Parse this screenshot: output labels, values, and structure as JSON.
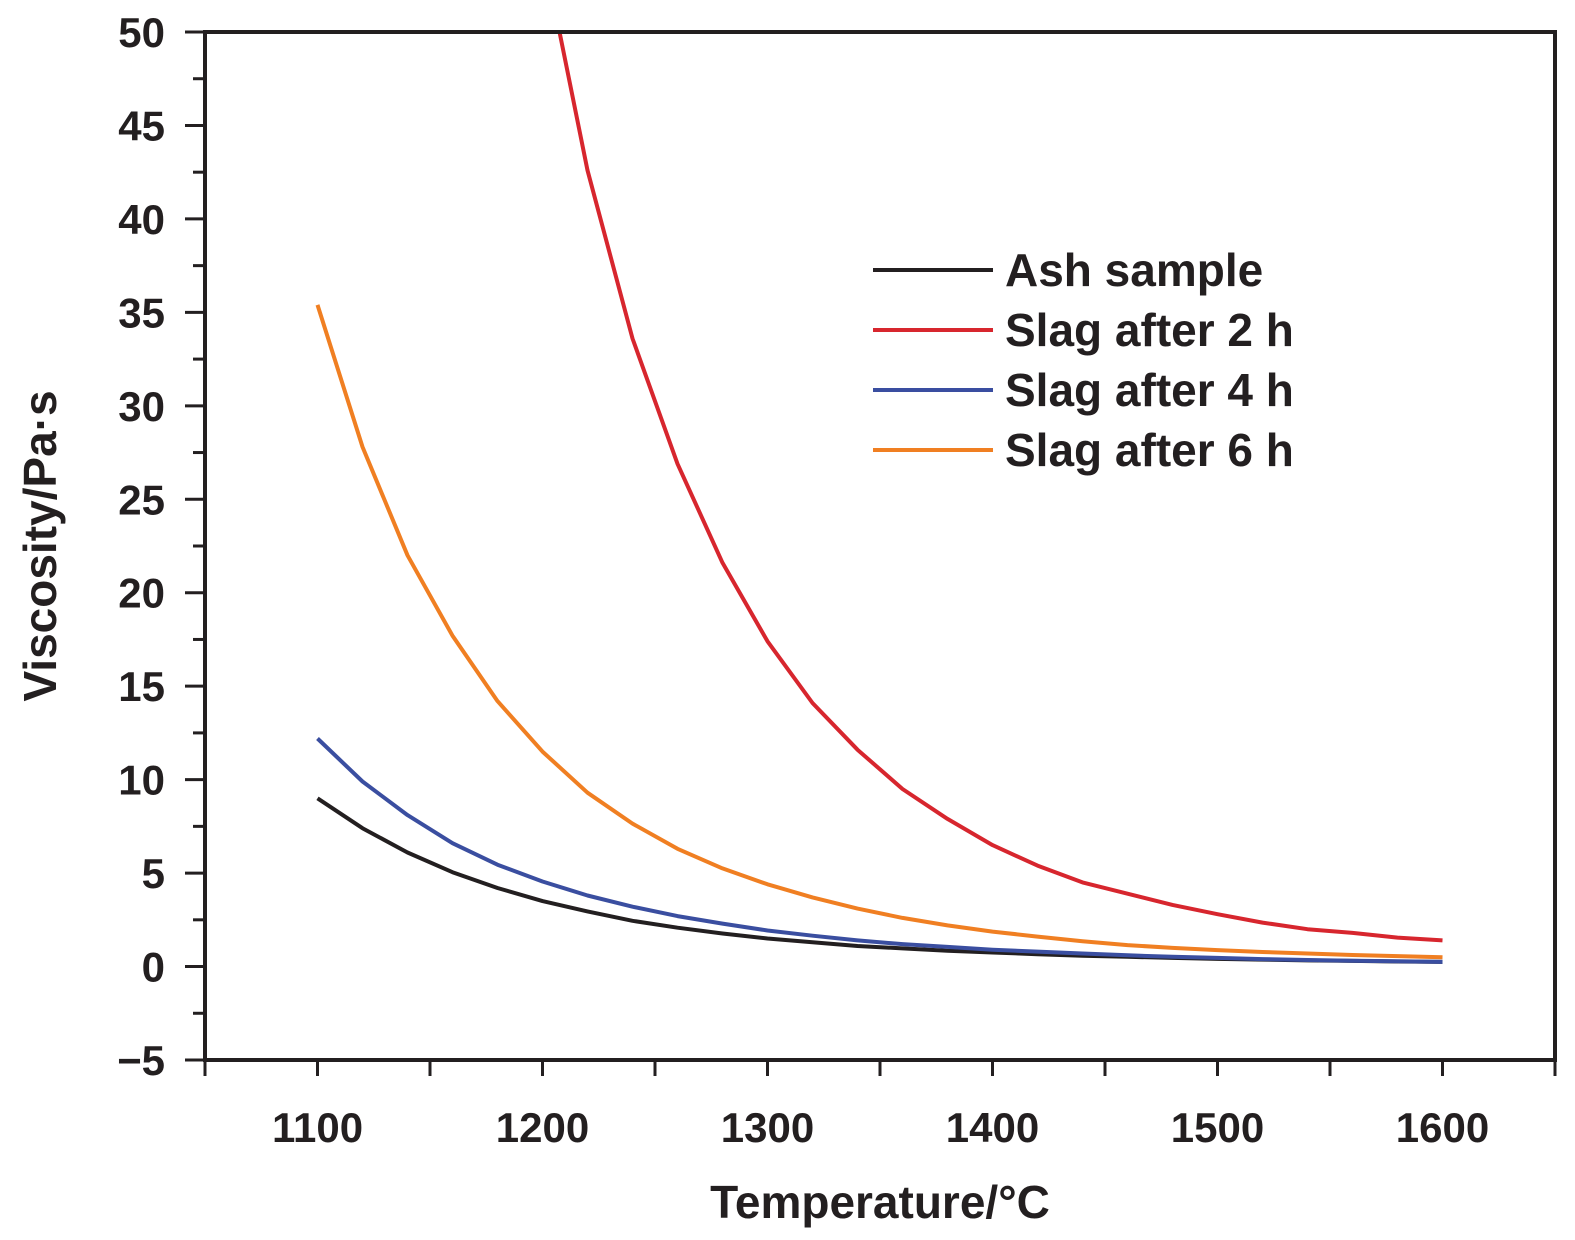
{
  "chart_data": {
    "type": "line",
    "title": "",
    "xlabel": "Temperature/°C",
    "ylabel": "Viscosity/Pa·s",
    "xlim": [
      1050,
      1650
    ],
    "ylim": [
      -5,
      50
    ],
    "xticks": [
      1100,
      1200,
      1300,
      1400,
      1500,
      1600
    ],
    "xtick_labels": [
      "1100",
      "1200",
      "1300",
      "1400",
      "1500",
      "1600"
    ],
    "yticks": [
      -5,
      0,
      5,
      10,
      15,
      20,
      25,
      30,
      35,
      40,
      45,
      50
    ],
    "ytick_labels": [
      "−5",
      "0",
      "5",
      "10",
      "15",
      "20",
      "25",
      "30",
      "35",
      "40",
      "45",
      "50"
    ],
    "grid": false,
    "legend_position": "top-right",
    "x": [
      1100,
      1120,
      1140,
      1160,
      1180,
      1200,
      1220,
      1240,
      1260,
      1280,
      1300,
      1320,
      1340,
      1360,
      1380,
      1400,
      1420,
      1440,
      1460,
      1480,
      1500,
      1520,
      1540,
      1560,
      1580,
      1600
    ],
    "series": [
      {
        "name": "Ash sample",
        "color": "#231f20",
        "values": [
          9.0,
          7.4,
          6.1,
          5.05,
          4.2,
          3.5,
          2.95,
          2.45,
          2.08,
          1.77,
          1.5,
          1.3,
          1.1,
          0.97,
          0.85,
          0.75,
          0.66,
          0.58,
          0.52,
          0.46,
          0.41,
          0.37,
          0.33,
          0.3,
          0.27,
          0.25
        ]
      },
      {
        "name": "Slag after 2 h",
        "color": "#d7262e",
        "values": [
          null,
          null,
          null,
          null,
          null,
          54.5,
          42.6,
          33.6,
          26.9,
          21.6,
          17.4,
          14.1,
          11.6,
          9.5,
          7.9,
          6.5,
          5.4,
          4.5,
          3.9,
          3.3,
          2.8,
          2.35,
          2.0,
          1.8,
          1.55,
          1.4
        ]
      },
      {
        "name": "Slag after 4 h",
        "color": "#3a4ea0",
        "values": [
          12.2,
          9.9,
          8.1,
          6.6,
          5.45,
          4.55,
          3.8,
          3.2,
          2.7,
          2.3,
          1.93,
          1.65,
          1.4,
          1.2,
          1.05,
          0.9,
          0.8,
          0.7,
          0.6,
          0.52,
          0.46,
          0.4,
          0.35,
          0.31,
          0.28,
          0.25
        ]
      },
      {
        "name": "Slag after 6 h",
        "color": "#f07f22",
        "values": [
          35.4,
          27.8,
          22.0,
          17.7,
          14.2,
          11.5,
          9.3,
          7.65,
          6.3,
          5.25,
          4.4,
          3.7,
          3.1,
          2.6,
          2.2,
          1.87,
          1.6,
          1.35,
          1.15,
          1.0,
          0.88,
          0.78,
          0.7,
          0.62,
          0.56,
          0.5
        ]
      }
    ]
  }
}
